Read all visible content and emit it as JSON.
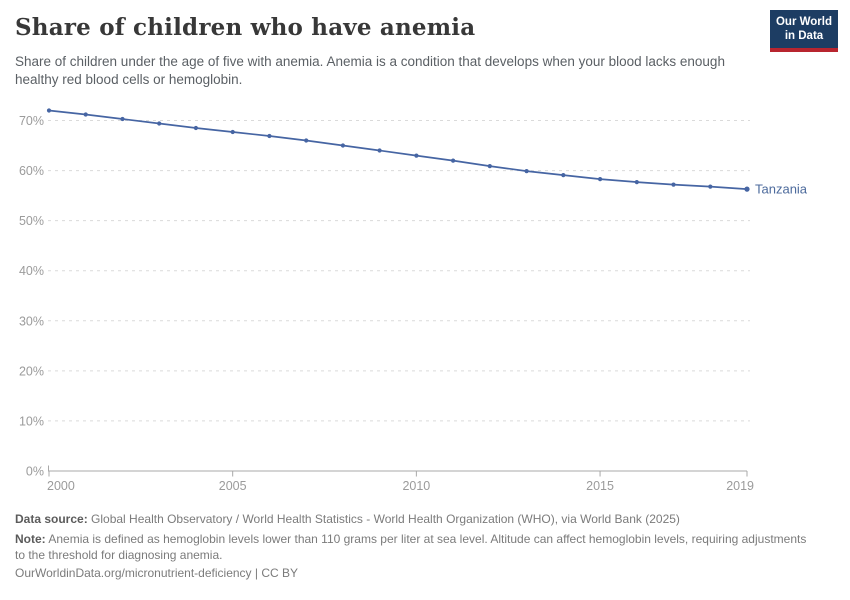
{
  "header": {
    "title": "Share of children who have anemia",
    "subtitle": "Share of children under the age of five with anemia. Anemia is a condition that develops when your blood lacks enough healthy red blood cells or hemoglobin.",
    "logo": {
      "line1": "Our World",
      "line2": "in Data",
      "bg_color": "#1d3d63",
      "accent_color": "#b8252f"
    }
  },
  "chart_data": {
    "type": "line",
    "title": "Share of children who have anemia",
    "xlabel": "",
    "ylabel": "",
    "x": [
      2000,
      2001,
      2002,
      2003,
      2004,
      2005,
      2006,
      2007,
      2008,
      2009,
      2010,
      2011,
      2012,
      2013,
      2014,
      2015,
      2016,
      2017,
      2018,
      2019
    ],
    "series": [
      {
        "name": "Tanzania",
        "values": [
          72.0,
          71.2,
          70.3,
          69.4,
          68.5,
          67.7,
          66.9,
          66.0,
          65.0,
          64.0,
          63.0,
          62.0,
          60.9,
          59.9,
          59.1,
          58.3,
          57.7,
          57.2,
          56.8,
          56.3
        ]
      }
    ],
    "xlim": [
      2000,
      2019
    ],
    "ylim": [
      0,
      75
    ],
    "x_ticks": [
      2000,
      2005,
      2010,
      2015,
      2019
    ],
    "y_ticks": [
      0,
      10,
      20,
      30,
      40,
      50,
      60,
      70
    ],
    "y_tick_suffix": "%",
    "grid": "horizontal-dashed",
    "legend": "end-of-line-label",
    "colors": {
      "line": "#4665a3",
      "end_label": "#4c6a9c",
      "gridline": "#dadada",
      "axis": "#a8a8a8",
      "tick_text": "#9b9b9b"
    }
  },
  "footer": {
    "source_label": "Data source:",
    "source_text": " Global Health Observatory / World Health Statistics - World Health Organization (WHO), via World Bank (2025)",
    "note_label": "Note:",
    "note_text": " Anemia is defined as hemoglobin levels lower than 110 grams per liter at sea level. Altitude can affect hemoglobin levels, requiring adjustments to the threshold for diagnosing anemia.",
    "citation": "OurWorldinData.org/micronutrient-deficiency | CC BY"
  }
}
